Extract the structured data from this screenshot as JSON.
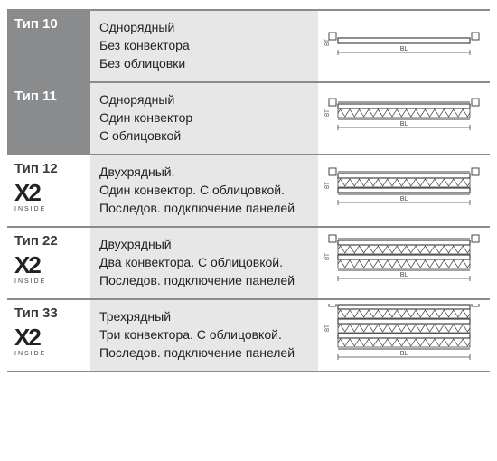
{
  "rows": [
    {
      "type_label": "Тип 10",
      "label_bg_grey": true,
      "label_white_text": true,
      "show_x2": false,
      "desc": [
        "Однорядный",
        "Без конвектора",
        "Без облицовки"
      ],
      "diagram": {
        "panels": 1,
        "convector_rows": 0,
        "flat": true
      }
    },
    {
      "type_label": "Тип 11",
      "label_bg_grey": true,
      "label_white_text": true,
      "show_x2": false,
      "desc": [
        "Однорядный",
        "Один конвектор",
        "С облицовкой"
      ],
      "diagram": {
        "panels": 1,
        "convector_rows": 1,
        "flat": false
      }
    },
    {
      "type_label": "Тип 12",
      "label_bg_grey": false,
      "label_white_text": false,
      "show_x2": true,
      "x2_label": "X2",
      "x2_sub": "INSIDE",
      "desc": [
        "Двухрядный.",
        "Один конвектор. С облицовкой.",
        "Последов. подключение панелей"
      ],
      "diagram": {
        "panels": 2,
        "convector_rows": 1,
        "flat": false
      }
    },
    {
      "type_label": "Тип 22",
      "label_bg_grey": false,
      "label_white_text": false,
      "show_x2": true,
      "x2_label": "X2",
      "x2_sub": "INSIDE",
      "desc": [
        "Двухрядный",
        "Два конвектора. С облицовкой.",
        "Последов. подключение панелей"
      ],
      "diagram": {
        "panels": 2,
        "convector_rows": 2,
        "flat": false
      }
    },
    {
      "type_label": "Тип 33",
      "label_bg_grey": false,
      "label_white_text": false,
      "show_x2": true,
      "x2_label": "X2",
      "x2_sub": "INSIDE",
      "desc": [
        "Трехрядный",
        "Три конвектора. С облицовкой.",
        "Последов. подключение панелей"
      ],
      "diagram": {
        "panels": 3,
        "convector_rows": 3,
        "flat": false
      }
    }
  ],
  "styling": {
    "border_color": "#8a8b8d",
    "label_bg_grey": "#8a8b8d",
    "desc_bg": "#e7e7e7",
    "diagram_stroke": "#444444",
    "diagram_bl_label": "BL",
    "diagram_bt_label": "BT",
    "font_size_type": 15,
    "font_size_desc": 14,
    "row_min_height": 78
  }
}
